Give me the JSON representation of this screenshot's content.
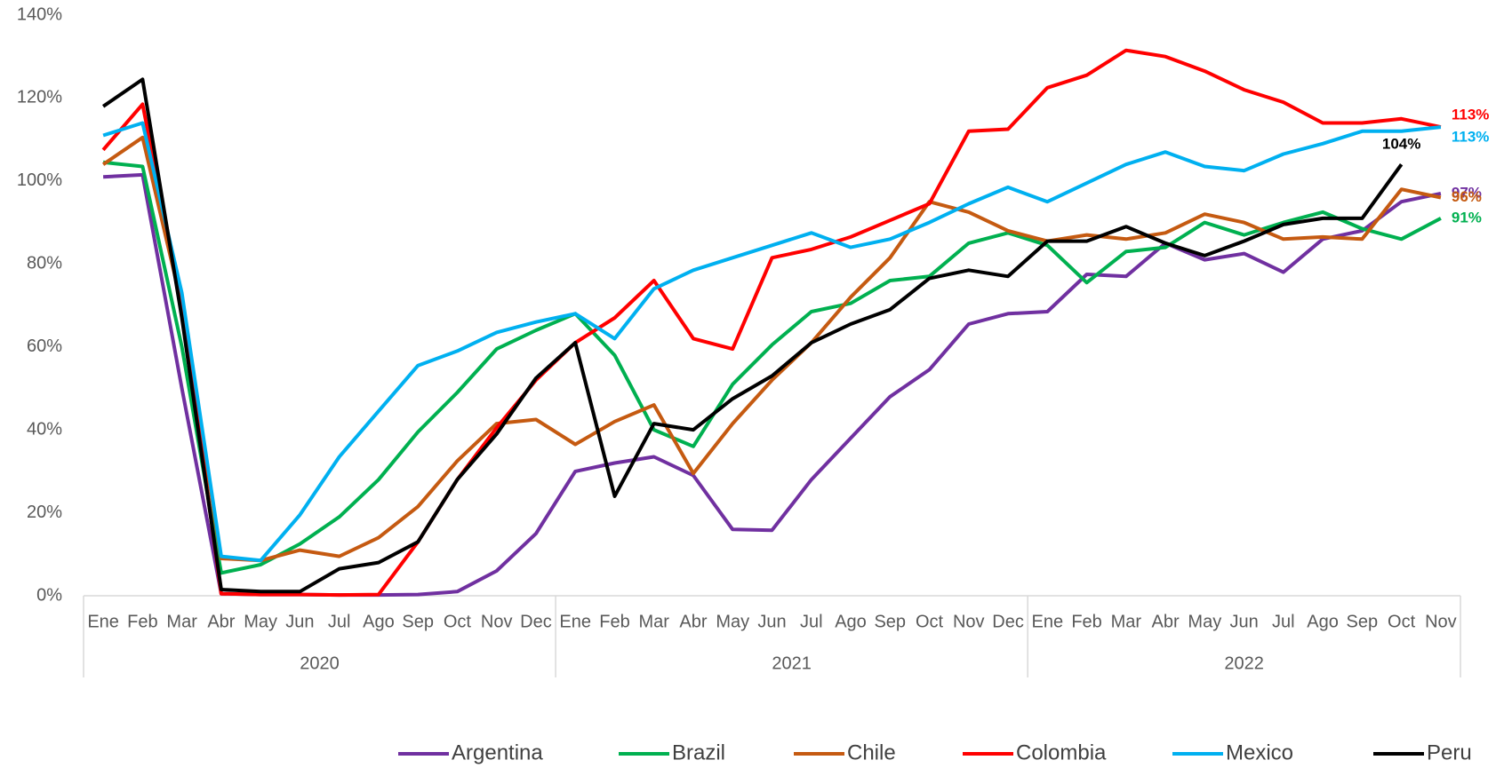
{
  "chart_data": {
    "type": "line",
    "categories": [
      "Ene",
      "Feb",
      "Mar",
      "Abr",
      "May",
      "Jun",
      "Jul",
      "Ago",
      "Sep",
      "Oct",
      "Nov",
      "Dec",
      "Ene",
      "Feb",
      "Mar",
      "Abr",
      "May",
      "Jun",
      "Jul",
      "Ago",
      "Sep",
      "Oct",
      "Nov",
      "Dec",
      "Ene",
      "Feb",
      "Mar",
      "Abr",
      "May",
      "Jun",
      "Jul",
      "Ago",
      "Sep",
      "Oct",
      "Nov"
    ],
    "category_groups": [
      {
        "label": "2020",
        "count": 12
      },
      {
        "label": "2021",
        "count": 12
      },
      {
        "label": "2022",
        "count": 11
      }
    ],
    "ylim": [
      0,
      140
    ],
    "yticks": [
      {
        "value": 0,
        "label": "0%"
      },
      {
        "value": 20,
        "label": "20%"
      },
      {
        "value": 40,
        "label": "40%"
      },
      {
        "value": 60,
        "label": "60%"
      },
      {
        "value": 80,
        "label": "80%"
      },
      {
        "value": 100,
        "label": "100%"
      },
      {
        "value": 120,
        "label": "120%"
      },
      {
        "value": 140,
        "label": "140%"
      }
    ],
    "grid": false,
    "legend": "bottom",
    "series": [
      {
        "name": "Argentina",
        "color": "#7030a0",
        "values": [
          101,
          101.5,
          50,
          0.5,
          0.3,
          0.3,
          0.2,
          0.2,
          0.3,
          1,
          6,
          15,
          30,
          32,
          33.5,
          29,
          16,
          15.8,
          28,
          38,
          48,
          54.5,
          65.5,
          68,
          68.5,
          77.5,
          77,
          85,
          81,
          82.5,
          78,
          86,
          88,
          95,
          97
        ],
        "value_labels": [
          null,
          null,
          null,
          null,
          null,
          null,
          null,
          null,
          null,
          null,
          null,
          null,
          null,
          null,
          null,
          null,
          null,
          null,
          null,
          null,
          null,
          null,
          null,
          null,
          null,
          null,
          null,
          null,
          null,
          null,
          null,
          null,
          null,
          null,
          "97%"
        ]
      },
      {
        "name": "Brazil",
        "color": "#00b050",
        "values": [
          104.5,
          103.5,
          60,
          5.5,
          7.5,
          12.5,
          19,
          28,
          39.5,
          49,
          59.5,
          64,
          68,
          58,
          40,
          36,
          51,
          60.5,
          68.5,
          70.5,
          76,
          77,
          85,
          87.5,
          84.5,
          75.5,
          83,
          84,
          90,
          87,
          90,
          92.5,
          88.5,
          86,
          91
        ],
        "value_labels": [
          null,
          null,
          null,
          null,
          null,
          null,
          null,
          null,
          null,
          null,
          null,
          null,
          null,
          null,
          null,
          null,
          null,
          null,
          null,
          null,
          null,
          null,
          null,
          null,
          null,
          null,
          null,
          null,
          null,
          null,
          null,
          null,
          null,
          null,
          "91%"
        ]
      },
      {
        "name": "Chile",
        "color": "#c55a11",
        "values": [
          104,
          110.5,
          70,
          9,
          8.5,
          11,
          9.5,
          14,
          21.5,
          32.5,
          41.5,
          42.5,
          36.5,
          42,
          46,
          29.5,
          41.5,
          52,
          61,
          72,
          81.5,
          95,
          92.5,
          88,
          85.5,
          87,
          86,
          87.5,
          92,
          90,
          86,
          86.5,
          86,
          98,
          96
        ],
        "value_labels": [
          null,
          null,
          null,
          null,
          null,
          null,
          null,
          null,
          null,
          null,
          null,
          null,
          null,
          null,
          null,
          null,
          null,
          null,
          null,
          null,
          null,
          null,
          null,
          null,
          null,
          null,
          null,
          null,
          null,
          null,
          null,
          null,
          null,
          null,
          "96%"
        ]
      },
      {
        "name": "Colombia",
        "color": "#ff0000",
        "values": [
          107.5,
          118.5,
          70,
          0.5,
          0.3,
          0.3,
          0.2,
          0.3,
          13,
          28,
          40.5,
          52,
          61,
          67,
          76,
          62,
          59.5,
          81.5,
          83.5,
          86.5,
          90.5,
          94.5,
          112,
          112.5,
          122.5,
          125.5,
          131.5,
          130,
          126.5,
          122,
          119,
          114,
          114,
          115,
          113
        ],
        "value_labels": [
          null,
          null,
          null,
          null,
          null,
          null,
          null,
          null,
          null,
          null,
          null,
          null,
          null,
          null,
          null,
          null,
          null,
          null,
          null,
          null,
          null,
          null,
          null,
          null,
          null,
          null,
          null,
          null,
          null,
          null,
          null,
          null,
          null,
          null,
          "113%"
        ]
      },
      {
        "name": "Mexico",
        "color": "#00b0f0",
        "values": [
          111,
          114,
          73,
          9.5,
          8.5,
          19.5,
          33.5,
          44.5,
          55.5,
          59,
          63.5,
          66,
          68,
          62,
          74,
          78.5,
          81.5,
          84.5,
          87.5,
          84,
          86,
          90,
          94.5,
          98.5,
          95,
          99.5,
          104,
          107,
          103.5,
          102.5,
          106.5,
          109,
          112,
          112,
          113
        ],
        "value_labels": [
          null,
          null,
          null,
          null,
          null,
          null,
          null,
          null,
          null,
          null,
          null,
          null,
          null,
          null,
          null,
          null,
          null,
          null,
          null,
          null,
          null,
          null,
          null,
          null,
          null,
          null,
          null,
          null,
          null,
          null,
          null,
          null,
          null,
          null,
          "113%"
        ]
      },
      {
        "name": "Peru",
        "color": "#000000",
        "values": [
          118,
          124.5,
          67,
          1.5,
          1,
          1,
          6.5,
          8,
          13,
          28,
          39,
          52.5,
          61,
          24,
          41.5,
          40,
          47.5,
          53,
          61,
          65.5,
          69,
          76.5,
          78.5,
          77,
          85.5,
          85.5,
          89,
          85,
          82,
          85.5,
          89.5,
          91,
          91,
          104,
          null
        ],
        "value_labels": [
          null,
          null,
          null,
          null,
          null,
          null,
          null,
          null,
          null,
          null,
          null,
          null,
          null,
          null,
          null,
          null,
          null,
          null,
          null,
          null,
          null,
          null,
          null,
          null,
          null,
          null,
          null,
          null,
          null,
          null,
          null,
          null,
          null,
          "104%",
          null
        ]
      }
    ]
  }
}
